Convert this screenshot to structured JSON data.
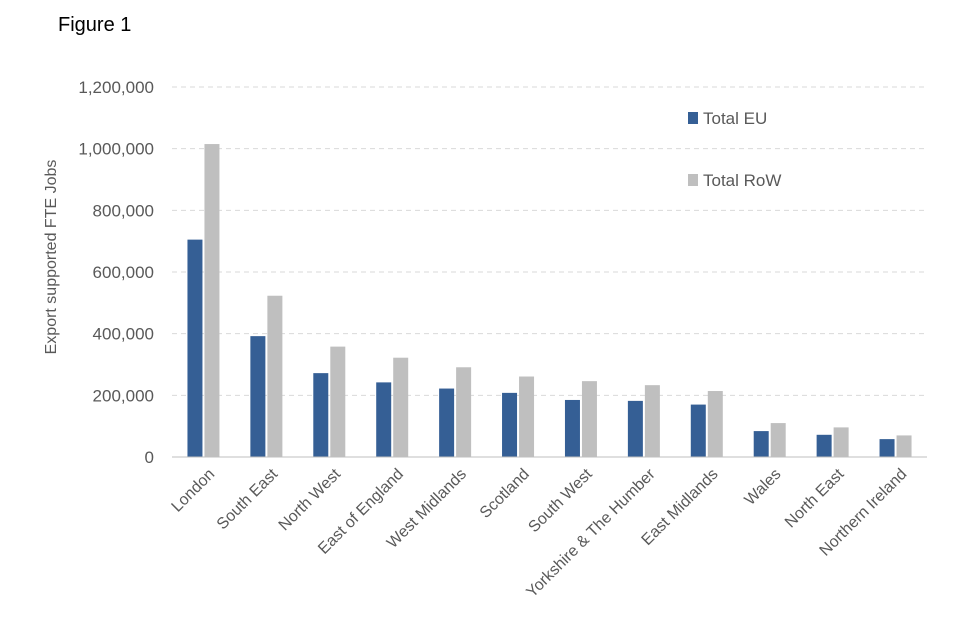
{
  "figure_label": "Figure 1",
  "chart_data": {
    "type": "bar",
    "ylabel": "Export supported FTE Jobs",
    "xlabel": "",
    "ylim": [
      0,
      1200000
    ],
    "ytick_step": 200000,
    "grid": true,
    "legend_position": "top-right",
    "categories": [
      "London",
      "South East",
      "North West",
      "East of England",
      "West Midlands",
      "Scotland",
      "South West",
      "Yorkshire & The Humber",
      "East Midlands",
      "Wales",
      "North East",
      "Northern Ireland"
    ],
    "series": [
      {
        "name": "Total EU",
        "color": "#355F95",
        "values": [
          705000,
          392000,
          272000,
          242000,
          222000,
          208000,
          185000,
          182000,
          170000,
          84000,
          72000,
          58000
        ]
      },
      {
        "name": "Total RoW",
        "color": "#BFBFBF",
        "values": [
          1015000,
          523000,
          358000,
          322000,
          291000,
          261000,
          246000,
          233000,
          214000,
          110000,
          96000,
          70000
        ]
      }
    ]
  }
}
